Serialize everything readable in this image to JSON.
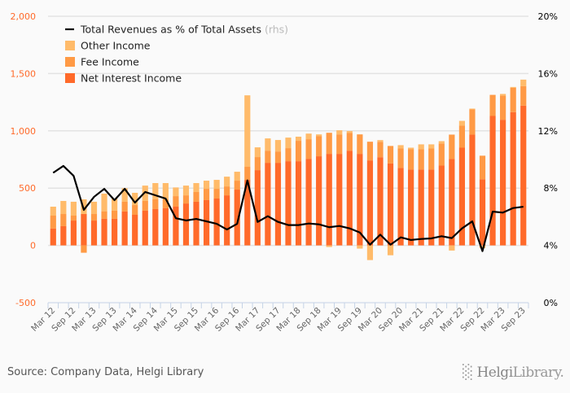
{
  "chart_data": {
    "type": "bar",
    "stacked": true,
    "tick_labels": [
      "Mar 12",
      "Sep 12",
      "Mar 13",
      "Sep 13",
      "Mar 14",
      "Sep 14",
      "Mar 15",
      "Sep 15",
      "Mar 16",
      "Sep 16",
      "Mar 17",
      "Sep 17",
      "Mar 18",
      "Sep 18",
      "Mar 19",
      "Sep 19",
      "Mar 20",
      "Sep 20",
      "Mar 21",
      "Sep 21",
      "Mar 22",
      "Sep 22",
      "Mar 23",
      "Sep 23"
    ],
    "quarter_count": 47,
    "ylim": [
      -500,
      2000
    ],
    "yticks": [
      -500,
      0,
      500,
      1000,
      1500,
      2000
    ],
    "ytick_labels": [
      "-500",
      "0",
      "500",
      "1,000",
      "1,500",
      "2,000"
    ],
    "y2lim": [
      0,
      20
    ],
    "y2ticks": [
      0,
      4,
      8,
      12,
      16,
      20
    ],
    "y2tick_labels": [
      "0%",
      "4%",
      "8%",
      "12%",
      "16%",
      "20%"
    ],
    "legend_position": "top-left",
    "series": [
      {
        "name": "Net Interest Income",
        "kind": "bar",
        "color": "#ff6a2a",
        "values": [
          147,
          168,
          217,
          274,
          217,
          232,
          232,
          296,
          267,
          303,
          317,
          324,
          338,
          366,
          381,
          395,
          409,
          437,
          487,
          572,
          657,
          721,
          721,
          735,
          735,
          756,
          778,
          799,
          799,
          827,
          799,
          742,
          770,
          715,
          676,
          662,
          662,
          662,
          697,
          754,
          853,
          967,
          577,
          1130,
          1097,
          1163,
          1220
        ]
      },
      {
        "name": "Fee Income",
        "kind": "bar",
        "color": "#ff9a45",
        "values": [
          113,
          106,
          43,
          -64,
          57,
          66,
          71,
          85,
          85,
          85,
          85,
          78,
          92,
          71,
          85,
          99,
          85,
          78,
          78,
          114,
          114,
          106,
          99,
          114,
          178,
          171,
          177,
          184,
          170,
          156,
          170,
          163,
          134,
          153,
          170,
          177,
          177,
          184,
          192,
          213,
          192,
          220,
          206,
          184,
          210,
          213,
          170
        ]
      },
      {
        "name": "Other Income",
        "kind": "bar",
        "color": "#ffbb6a",
        "values": [
          78,
          114,
          121,
          128,
          107,
          154,
          106,
          118,
          107,
          134,
          142,
          142,
          76,
          85,
          78,
          71,
          78,
          85,
          78,
          624,
          85,
          107,
          100,
          92,
          36,
          49,
          14,
          -14,
          36,
          15,
          -28,
          -128,
          15,
          -86,
          29,
          14,
          43,
          36,
          21,
          -45,
          42,
          7,
          -24,
          0,
          15,
          7,
          57
        ]
      },
      {
        "name": "Total Revenues as % of Total Assets",
        "suffix": "(rhs)",
        "kind": "line",
        "axis": "right",
        "color": "#000000",
        "values": [
          9.07,
          9.55,
          8.86,
          6.48,
          7.39,
          7.95,
          7.16,
          7.95,
          6.99,
          7.73,
          7.5,
          7.27,
          5.9,
          5.74,
          5.85,
          5.68,
          5.51,
          5.11,
          5.51,
          8.54,
          5.64,
          6.04,
          5.64,
          5.42,
          5.42,
          5.53,
          5.47,
          5.27,
          5.36,
          5.19,
          4.9,
          4.05,
          4.75,
          4.05,
          4.56,
          4.38,
          4.45,
          4.49,
          4.64,
          4.51,
          5.19,
          5.68,
          3.6,
          6.36,
          6.29,
          6.61,
          6.7
        ]
      }
    ],
    "left_axis_color": "#ff6a2a",
    "grid": true
  },
  "footer": {
    "source": "Source: Company Data, Helgi Library",
    "logo": "HelgiLibrary"
  }
}
